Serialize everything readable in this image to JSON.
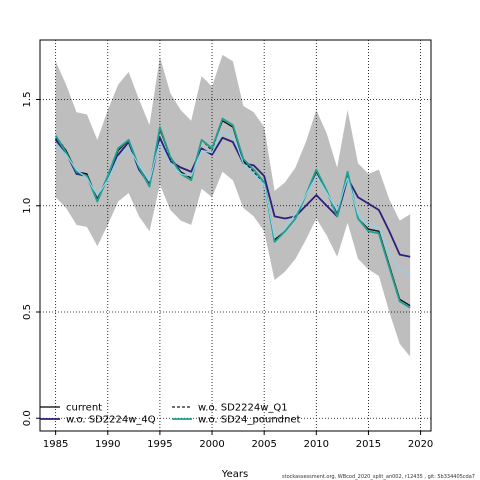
{
  "chart_data": {
    "type": "line",
    "title": "",
    "xlabel": "Years",
    "ylabel": "",
    "xlim": [
      1983.5,
      2021
    ],
    "ylim": [
      -0.06,
      1.78
    ],
    "xticks": [
      1985,
      1990,
      1995,
      2000,
      2005,
      2010,
      2015,
      2020
    ],
    "yticks": [
      0.0,
      0.5,
      1.0,
      1.5
    ],
    "ytick_labels": [
      "0.0",
      "0.5",
      "1.0",
      "1.5"
    ],
    "grid": true,
    "legend_position": "bottom-left",
    "x": [
      1985,
      1986,
      1987,
      1988,
      1989,
      1990,
      1991,
      1992,
      1993,
      1994,
      1995,
      1996,
      1997,
      1998,
      1999,
      2000,
      2001,
      2002,
      2003,
      2004,
      2005,
      2006,
      2007,
      2008,
      2009,
      2010,
      2011,
      2012,
      2013,
      2014,
      2015,
      2016,
      2017,
      2018,
      2019
    ],
    "band": {
      "color": "#bebebe",
      "upper": [
        1.68,
        1.57,
        1.44,
        1.43,
        1.31,
        1.45,
        1.57,
        1.63,
        1.5,
        1.38,
        1.7,
        1.53,
        1.45,
        1.4,
        1.61,
        1.56,
        1.71,
        1.68,
        1.47,
        1.44,
        1.37,
        1.07,
        1.11,
        1.18,
        1.3,
        1.45,
        1.34,
        1.18,
        1.45,
        1.2,
        1.15,
        1.17,
        1.03,
        0.93,
        0.96
      ],
      "lower": [
        1.04,
        0.99,
        0.91,
        0.9,
        0.81,
        0.91,
        1.02,
        1.06,
        0.95,
        0.88,
        1.1,
        0.98,
        0.93,
        0.91,
        1.08,
        1.04,
        1.16,
        1.12,
        0.99,
        0.95,
        0.88,
        0.65,
        0.69,
        0.75,
        0.84,
        0.94,
        0.86,
        0.76,
        0.92,
        0.75,
        0.7,
        0.67,
        0.5,
        0.35,
        0.29
      ]
    },
    "series": [
      {
        "name": "current",
        "color": "#000000",
        "dash": "",
        "width": 1.2,
        "values": [
          1.32,
          1.26,
          1.16,
          1.15,
          1.03,
          1.14,
          1.26,
          1.31,
          1.18,
          1.1,
          1.36,
          1.23,
          1.16,
          1.13,
          1.31,
          1.27,
          1.4,
          1.37,
          1.21,
          1.17,
          1.11,
          0.84,
          0.88,
          0.94,
          1.05,
          1.16,
          1.07,
          0.96,
          1.15,
          0.94,
          0.89,
          0.88,
          0.72,
          0.56,
          0.53
        ]
      },
      {
        "name": "w.o. SD2224w_4Q",
        "color": "#2e1f78",
        "dash": "",
        "width": 1.8,
        "values": [
          1.31,
          1.25,
          1.15,
          1.14,
          1.03,
          1.13,
          1.24,
          1.3,
          1.17,
          1.1,
          1.32,
          1.21,
          1.18,
          1.16,
          1.27,
          1.24,
          1.32,
          1.3,
          1.2,
          1.19,
          1.14,
          0.95,
          0.94,
          0.95,
          1.0,
          1.05,
          1.0,
          0.95,
          1.13,
          1.04,
          1.01,
          0.98,
          0.88,
          0.77,
          0.76
        ]
      },
      {
        "name": "w.o. SD2224w_Q1",
        "color": "#1a1a1a",
        "dash": "3,2",
        "width": 1.2,
        "values": [
          1.33,
          1.26,
          1.16,
          1.14,
          1.03,
          1.14,
          1.26,
          1.31,
          1.18,
          1.09,
          1.37,
          1.22,
          1.16,
          1.13,
          1.31,
          1.26,
          1.41,
          1.38,
          1.21,
          1.16,
          1.1,
          0.83,
          0.88,
          0.94,
          1.05,
          1.16,
          1.07,
          0.96,
          1.16,
          0.94,
          0.89,
          0.88,
          0.72,
          0.56,
          0.53
        ]
      },
      {
        "name": "w.o. SD24_poundnet",
        "color": "#21a08f",
        "dash": "",
        "width": 1.8,
        "values": [
          1.33,
          1.25,
          1.16,
          1.14,
          1.02,
          1.14,
          1.27,
          1.31,
          1.18,
          1.09,
          1.37,
          1.23,
          1.15,
          1.12,
          1.31,
          1.27,
          1.41,
          1.38,
          1.22,
          1.17,
          1.11,
          0.83,
          0.88,
          0.94,
          1.05,
          1.17,
          1.07,
          0.95,
          1.16,
          0.94,
          0.88,
          0.87,
          0.71,
          0.55,
          0.52
        ]
      },
      {
        "name": "",
        "color": "#8fd3ec",
        "dash": "",
        "width": 1.2,
        "values": [
          1.29,
          1.24,
          1.17,
          1.13,
          1.05,
          1.12,
          1.23,
          1.27,
          1.19,
          1.12,
          1.3,
          1.2,
          1.15,
          1.14,
          1.26,
          1.25,
          1.35,
          1.33,
          1.2,
          1.15,
          1.1,
          0.85,
          0.9,
          0.96,
          1.05,
          1.14,
          1.06,
          0.98,
          1.13,
          0.96,
          0.91,
          0.9,
          0.78,
          0.7,
          0.68
        ]
      }
    ]
  },
  "footer_text": "stockassessment.org, WBcod_2020_split_an002, r12435 , git: 5b334405cda7"
}
